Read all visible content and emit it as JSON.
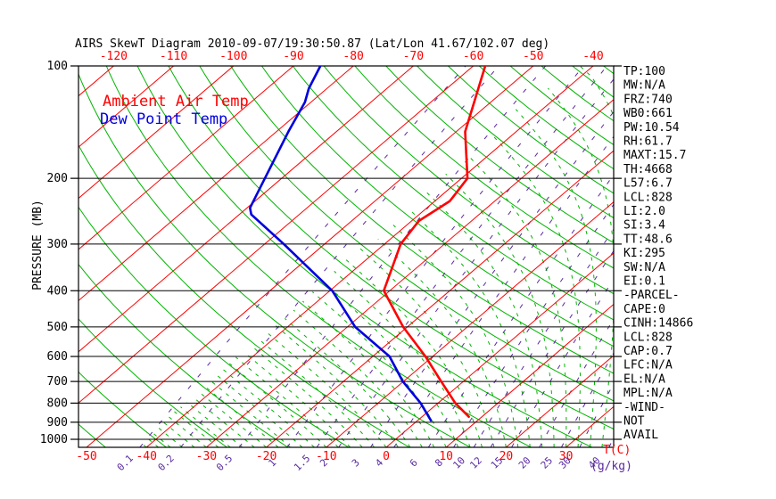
{
  "title": "AIRS SkewT Diagram 2010-09-07/19:30:50.87 (Lat/Lon 41.67/102.07 deg)",
  "legend": {
    "temperature": "Ambient Air Temp",
    "dewpoint": "Dew Point Temp"
  },
  "axes": {
    "pressure_label": "PRESSURE (MB)",
    "temp_label": "T(C)",
    "mixing_ratio_label": "(g/kg)"
  },
  "indices": [
    "TP:100",
    "MW:N/A",
    "FRZ:740",
    "WB0:661",
    "PW:10.54",
    "RH:61.7",
    "MAXT:15.7",
    "TH:4668",
    "L57:6.7",
    "LCL:828",
    "LI:2.0",
    "SI:3.4",
    "TT:48.6",
    "KI:295",
    "SW:N/A",
    "EI:0.1",
    "-PARCEL-",
    "CAPE:0",
    "CINH:14866",
    "LCL:828",
    "CAP:0.7",
    "LFC:N/A",
    "EL:N/A",
    "MPL:N/A",
    "-WIND-",
    "NOT",
    "AVAIL"
  ],
  "colors": {
    "background": "#ffffff",
    "axis": "#000000",
    "isotherm": "#ff0000",
    "adiabat": "#00b400",
    "moist_adiabat": "#00b400",
    "mixing_ratio": "#5a2a9e",
    "temperature_curve": "#ff0000",
    "dewpoint_curve": "#0000dd"
  },
  "chart_data": {
    "type": "line",
    "title": "AIRS SkewT Diagram 2010-09-07/19:30:50.87 (Lat/Lon 41.67/102.07 deg)",
    "xlabel": "T(C)",
    "ylabel": "PRESSURE (MB)",
    "pressure_ticks_mb": [
      100,
      200,
      300,
      400,
      500,
      600,
      700,
      800,
      900,
      1000
    ],
    "top_temp_labels_c": [
      -120,
      -110,
      -100,
      -90,
      -80,
      -70,
      -60,
      -50,
      -40
    ],
    "bottom_temp_labels_c": [
      -50,
      -40,
      -30,
      -20,
      -10,
      0,
      10,
      20,
      30
    ],
    "mixing_ratio_lines_g_per_kg": [
      0.1,
      0.2,
      0.5,
      1,
      1.5,
      2,
      3,
      4,
      6,
      8,
      10,
      12,
      15,
      20,
      25,
      30,
      40
    ],
    "pressure_range_mb": [
      100,
      1050
    ],
    "isotherm_range_c": [
      -130,
      40
    ],
    "isotherm_step_c": 10,
    "dry_adiabat_step_c": 10,
    "moist_adiabat_step_c": 2,
    "grid_on": true,
    "legend_position": "upper-left",
    "series": [
      {
        "name": "Ambient Air Temp",
        "color": "#ff0000",
        "points_p_mb_t_c": [
          [
            100,
            -58
          ],
          [
            150,
            -48.5
          ],
          [
            200,
            -39
          ],
          [
            230,
            -37.5
          ],
          [
            260,
            -38.8
          ],
          [
            300,
            -37.3
          ],
          [
            400,
            -31
          ],
          [
            500,
            -20.7
          ],
          [
            600,
            -11.2
          ],
          [
            700,
            -3.7
          ],
          [
            800,
            2.9
          ],
          [
            870,
            7.8
          ]
        ]
      },
      {
        "name": "Dew Point Temp",
        "color": "#0000dd",
        "points_p_mb_t_c": [
          [
            100,
            -85.5
          ],
          [
            115,
            -83
          ],
          [
            125,
            -81
          ],
          [
            150,
            -78
          ],
          [
            200,
            -72.8
          ],
          [
            240,
            -69.5
          ],
          [
            250,
            -68
          ],
          [
            300,
            -56.8
          ],
          [
            400,
            -39.6
          ],
          [
            500,
            -28.7
          ],
          [
            600,
            -17.2
          ],
          [
            700,
            -10.1
          ],
          [
            800,
            -2.9
          ],
          [
            890,
            2.2
          ]
        ]
      }
    ]
  }
}
